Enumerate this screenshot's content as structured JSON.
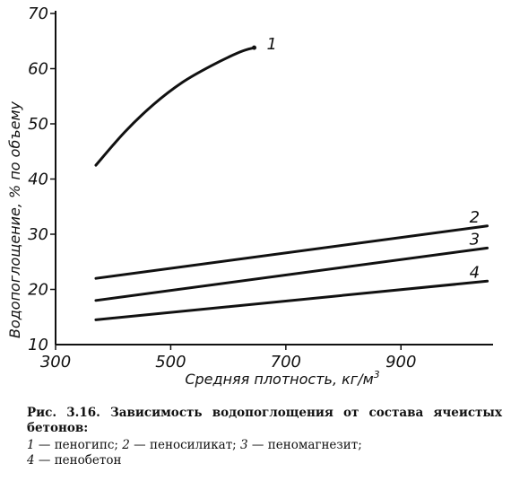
{
  "chart_data": {
    "type": "line",
    "xlabel": "Средняя плотность, кг/м",
    "xlabel_sup": "3",
    "ylabel": "Водопоглощение, % по объему",
    "xlim": [
      300,
      1060
    ],
    "ylim": [
      10,
      70
    ],
    "x_ticks": [
      300,
      500,
      700,
      900
    ],
    "y_ticks": [
      10,
      20,
      30,
      40,
      50,
      60,
      70
    ],
    "grid": false,
    "series": [
      {
        "name": "1",
        "x": [
          370,
          420,
          470,
          520,
          570,
          620,
          645
        ],
        "y": [
          42.5,
          48.5,
          53.5,
          57.5,
          60.5,
          63,
          63.8
        ]
      },
      {
        "name": "2",
        "x": [
          370,
          1050
        ],
        "y": [
          22,
          31.5
        ]
      },
      {
        "name": "3",
        "x": [
          370,
          1050
        ],
        "y": [
          18,
          27.5
        ]
      },
      {
        "name": "4",
        "x": [
          370,
          1050
        ],
        "y": [
          14.5,
          21.5
        ]
      }
    ]
  },
  "caption": {
    "title": "Рис. 3.16. Зависимость водопоглощения от состава ячеистых бетонов:",
    "legend": [
      {
        "num": "1",
        "text": "пеногипс;"
      },
      {
        "num": "2",
        "text": "пеносиликат;"
      },
      {
        "num": "3",
        "text": "пеномагнезит;"
      },
      {
        "num": "4",
        "text": "пенобетон"
      }
    ]
  }
}
